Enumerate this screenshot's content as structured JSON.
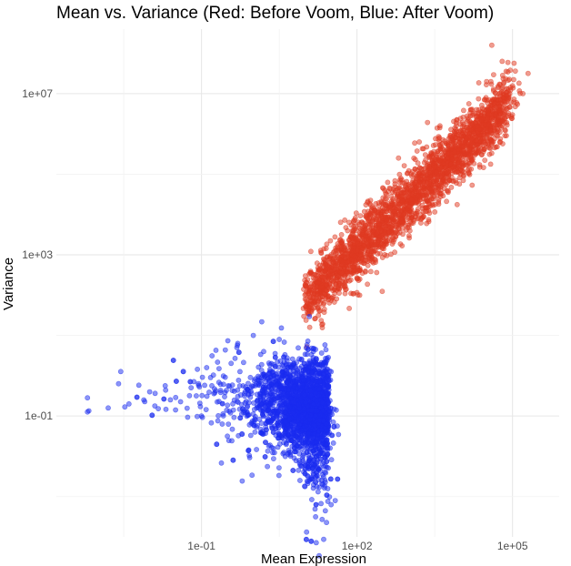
{
  "chart_data": {
    "type": "scatter",
    "title": "Mean vs. Variance (Red: Before Voom, Blue: After Voom)",
    "xlabel": "Mean Expression",
    "ylabel": "Variance",
    "x_scale": "log10",
    "y_scale": "log10",
    "xlim_log10": [
      -3.8,
      5.9
    ],
    "ylim_log10": [
      -4.0,
      8.6
    ],
    "x_ticks": [
      {
        "value_log10": -1,
        "label": "1e-01"
      },
      {
        "value_log10": 2,
        "label": "1e+02"
      },
      {
        "value_log10": 5,
        "label": "1e+05"
      }
    ],
    "y_ticks": [
      {
        "value_log10": -1,
        "label": "1e-01"
      },
      {
        "value_log10": 3,
        "label": "1e+03"
      },
      {
        "value_log10": 7,
        "label": "1e+07"
      }
    ],
    "grid": true,
    "series": [
      {
        "name": "Before Voom",
        "color": "#e03a22",
        "trend_log10": {
          "x_range": [
            1.0,
            4.9
          ],
          "slope": 1.25,
          "intercept": 0.6,
          "spread": 0.45
        },
        "points_log10": [
          [
            1.0,
            1.9
          ],
          [
            1.3,
            2.2
          ],
          [
            1.5,
            3.0
          ],
          [
            1.7,
            3.5
          ],
          [
            2.0,
            3.1
          ],
          [
            2.2,
            4.3
          ],
          [
            2.5,
            3.9
          ],
          [
            2.8,
            5.4
          ],
          [
            3.0,
            4.2
          ],
          [
            3.2,
            5.8
          ],
          [
            3.6,
            6.2
          ],
          [
            3.9,
            5.8
          ],
          [
            4.2,
            6.6
          ],
          [
            4.5,
            7.3
          ],
          [
            4.6,
            8.2
          ],
          [
            4.8,
            7.8
          ],
          [
            5.3,
            7.5
          ],
          [
            5.2,
            7.0
          ]
        ]
      },
      {
        "name": "After Voom",
        "color": "#1a2bf0",
        "trend_log10": {
          "x_range": [
            -0.6,
            1.6
          ],
          "center_y": -0.8,
          "spread": 0.6
        },
        "points_log10": [
          [
            -3.2,
            -0.55
          ],
          [
            -2.0,
            -0.4
          ],
          [
            -1.6,
            -0.6
          ],
          [
            -1.2,
            -0.3
          ],
          [
            -1.0,
            -1.0
          ],
          [
            -0.8,
            -0.25
          ],
          [
            -0.5,
            -1.5
          ],
          [
            0.0,
            1.0
          ],
          [
            0.5,
            0.9
          ],
          [
            0.9,
            -2.6
          ],
          [
            1.2,
            -3.5
          ],
          [
            1.5,
            -3.2
          ],
          [
            1.5,
            0.1
          ],
          [
            -3.2,
            -0.9
          ],
          [
            -2.6,
            -0.2
          ],
          [
            -2.8,
            -0.8
          ],
          [
            -2.4,
            -0.7
          ],
          [
            -1.9,
            -0.75
          ],
          [
            -1.7,
            -0.25
          ],
          [
            -1.5,
            -0.85
          ],
          [
            -0.9,
            0.2
          ],
          [
            -0.3,
            0.8
          ],
          [
            0.2,
            0.6
          ],
          [
            -0.6,
            -1.2
          ],
          [
            -1.1,
            -0.5
          ]
        ]
      }
    ]
  }
}
